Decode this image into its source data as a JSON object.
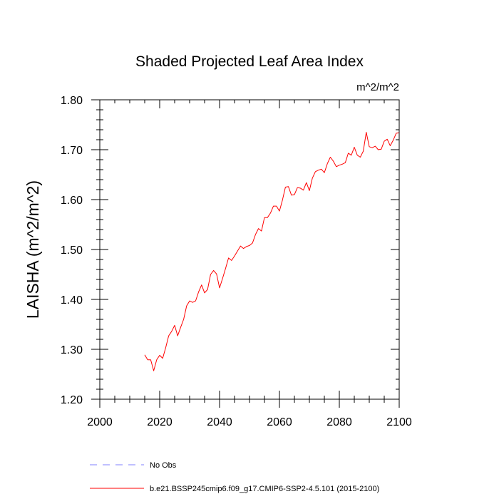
{
  "chart_data": {
    "type": "line",
    "title": "Shaded Projected Leaf Area Index",
    "units_label": "m^2/m^2",
    "ylabel": "LAISHA  (m^2/m^2)",
    "xlabel": "",
    "xlim": [
      2000,
      2100
    ],
    "ylim": [
      1.2,
      1.8
    ],
    "x_ticks": [
      2000,
      2020,
      2040,
      2060,
      2080,
      2100
    ],
    "x_tick_labels": [
      "2000",
      "2020",
      "2040",
      "2060",
      "2080",
      "2100"
    ],
    "y_ticks": [
      1.2,
      1.3,
      1.4,
      1.5,
      1.6,
      1.7,
      1.8
    ],
    "y_tick_labels": [
      "1.20",
      "1.30",
      "1.40",
      "1.50",
      "1.60",
      "1.70",
      "1.80"
    ],
    "grid": false,
    "legend_position": "bottom",
    "series": [
      {
        "name": "No Obs",
        "color": "#8080ff",
        "dash": "dashed",
        "x": [],
        "y": []
      },
      {
        "name": "b.e21.BSSP245cmip6.f09_g17.CMIP6-SSP2-4.5.101 (2015-2100)",
        "color": "#ff0000",
        "dash": "solid",
        "x": [
          2015,
          2016,
          2017,
          2018,
          2019,
          2020,
          2021,
          2022,
          2023,
          2024,
          2025,
          2026,
          2027,
          2028,
          2029,
          2030,
          2031,
          2032,
          2033,
          2034,
          2035,
          2036,
          2037,
          2038,
          2039,
          2040,
          2041,
          2042,
          2043,
          2044,
          2045,
          2046,
          2047,
          2048,
          2049,
          2050,
          2051,
          2052,
          2053,
          2054,
          2055,
          2056,
          2057,
          2058,
          2059,
          2060,
          2061,
          2062,
          2063,
          2064,
          2065,
          2066,
          2067,
          2068,
          2069,
          2070,
          2071,
          2072,
          2073,
          2074,
          2075,
          2076,
          2077,
          2078,
          2079,
          2080,
          2081,
          2082,
          2083,
          2084,
          2085,
          2086,
          2087,
          2088,
          2089,
          2090,
          2091,
          2092,
          2093,
          2094,
          2095,
          2096,
          2097,
          2098,
          2099,
          2100
        ],
        "y": [
          1.289,
          1.279,
          1.279,
          1.257,
          1.279,
          1.288,
          1.282,
          1.303,
          1.327,
          1.336,
          1.348,
          1.327,
          1.344,
          1.36,
          1.387,
          1.397,
          1.394,
          1.397,
          1.415,
          1.429,
          1.413,
          1.42,
          1.45,
          1.458,
          1.451,
          1.423,
          1.442,
          1.462,
          1.483,
          1.478,
          1.487,
          1.497,
          1.507,
          1.502,
          1.506,
          1.508,
          1.513,
          1.53,
          1.542,
          1.537,
          1.564,
          1.564,
          1.573,
          1.587,
          1.587,
          1.577,
          1.599,
          1.625,
          1.626,
          1.609,
          1.61,
          1.624,
          1.623,
          1.619,
          1.634,
          1.618,
          1.643,
          1.656,
          1.659,
          1.661,
          1.654,
          1.672,
          1.685,
          1.677,
          1.666,
          1.669,
          1.671,
          1.674,
          1.693,
          1.689,
          1.705,
          1.689,
          1.685,
          1.697,
          1.735,
          1.706,
          1.704,
          1.707,
          1.7,
          1.701,
          1.717,
          1.721,
          1.708,
          1.719,
          1.733,
          1.734
        ]
      }
    ]
  }
}
